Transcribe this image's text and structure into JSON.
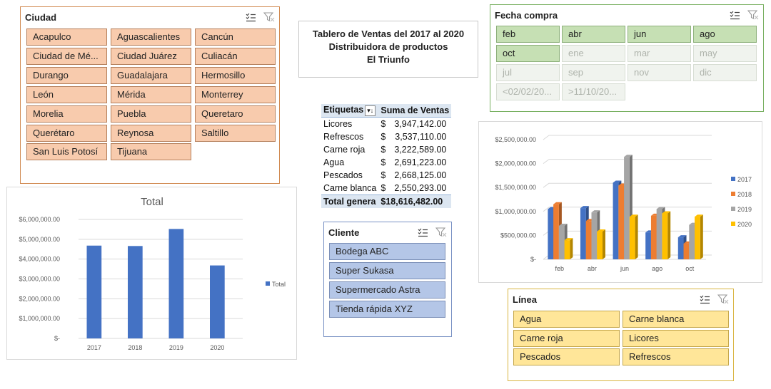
{
  "ciudad": {
    "title": "Ciudad",
    "items": [
      "Acapulco",
      "Aguascalientes",
      "Cancún",
      "Ciudad de Mé...",
      "Ciudad Juárez",
      "Culiacán",
      "Durango",
      "Guadalajara",
      "Hermosillo",
      "León",
      "Mérida",
      "Monterrey",
      "Morelia",
      "Puebla",
      "Queretaro",
      "Querétaro",
      "Reynosa",
      "Saltillo",
      "San Luis Potosí",
      "Tijuana"
    ]
  },
  "fecha": {
    "title": "Fecha compra",
    "items": [
      {
        "label": "feb",
        "selected": true
      },
      {
        "label": "abr",
        "selected": true
      },
      {
        "label": "jun",
        "selected": true
      },
      {
        "label": "ago",
        "selected": true
      },
      {
        "label": "oct",
        "selected": true
      },
      {
        "label": "ene",
        "selected": false
      },
      {
        "label": "mar",
        "selected": false
      },
      {
        "label": "may",
        "selected": false
      },
      {
        "label": "jul",
        "selected": false
      },
      {
        "label": "sep",
        "selected": false
      },
      {
        "label": "nov",
        "selected": false
      },
      {
        "label": "dic",
        "selected": false
      },
      {
        "label": "<02/02/20...",
        "selected": false
      },
      {
        "label": ">11/10/20...",
        "selected": false
      }
    ]
  },
  "title_box": {
    "line1": "Tablero de Ventas del 2017 al 2020",
    "line2": "Distribuidora de productos",
    "line3": "El Triunfo"
  },
  "pivot": {
    "col1": "Etiquetas",
    "col2": "Suma de Ventas",
    "rows": [
      {
        "label": "Licores",
        "value": "3,947,142.00"
      },
      {
        "label": "Refrescos",
        "value": "3,537,110.00"
      },
      {
        "label": "Carne roja",
        "value": "3,222,589.00"
      },
      {
        "label": "Agua",
        "value": "2,691,223.00"
      },
      {
        "label": "Pescados",
        "value": "2,668,125.00"
      },
      {
        "label": "Carne blanca",
        "value": "2,550,293.00"
      }
    ],
    "currency": "$",
    "total_label": "Total genera",
    "total_value": "$18,616,482.00"
  },
  "cliente": {
    "title": "Cliente",
    "items": [
      "Bodega ABC",
      "Super Sukasa",
      "Supermercado Astra",
      "Tienda rápida XYZ"
    ]
  },
  "linea": {
    "title": "Línea",
    "items": [
      "Agua",
      "Carne blanca",
      "Carne roja",
      "Licores",
      "Pescados",
      "Refrescos"
    ]
  },
  "chart_data": [
    {
      "type": "bar",
      "title": "Total",
      "categories": [
        "2017",
        "2018",
        "2019",
        "2020"
      ],
      "series": [
        {
          "name": "Total",
          "values": [
            4680000,
            4660000,
            5520000,
            3680000
          ],
          "color": "#4472c4"
        }
      ],
      "ylim": [
        0,
        6000000
      ],
      "yticks": [
        "$-",
        "$1,000,000.00",
        "$2,000,000.00",
        "$3,000,000.00",
        "$4,000,000.00",
        "$5,000,000.00",
        "$6,000,000.00"
      ],
      "legend": "right"
    },
    {
      "type": "bar",
      "title": "",
      "categories": [
        "feb",
        "abr",
        "jun",
        "ago",
        "oct"
      ],
      "series": [
        {
          "name": "2017",
          "values": [
            1050000,
            1070000,
            1600000,
            560000,
            460000
          ],
          "color": "#4472c4"
        },
        {
          "name": "2018",
          "values": [
            1150000,
            800000,
            1540000,
            910000,
            330000
          ],
          "color": "#ed7d31"
        },
        {
          "name": "2019",
          "values": [
            700000,
            980000,
            2140000,
            1050000,
            720000
          ],
          "color": "#a5a5a5"
        },
        {
          "name": "2020",
          "values": [
            400000,
            580000,
            890000,
            960000,
            890000
          ],
          "color": "#ffc000"
        }
      ],
      "ylim": [
        0,
        2500000
      ],
      "yticks": [
        "$-",
        "$500,000.00",
        "$1,000,000.00",
        "$1,500,000.00",
        "$2,000,000.00",
        "$2,500,000.00"
      ],
      "legend": "right",
      "style": "3d-column"
    }
  ]
}
